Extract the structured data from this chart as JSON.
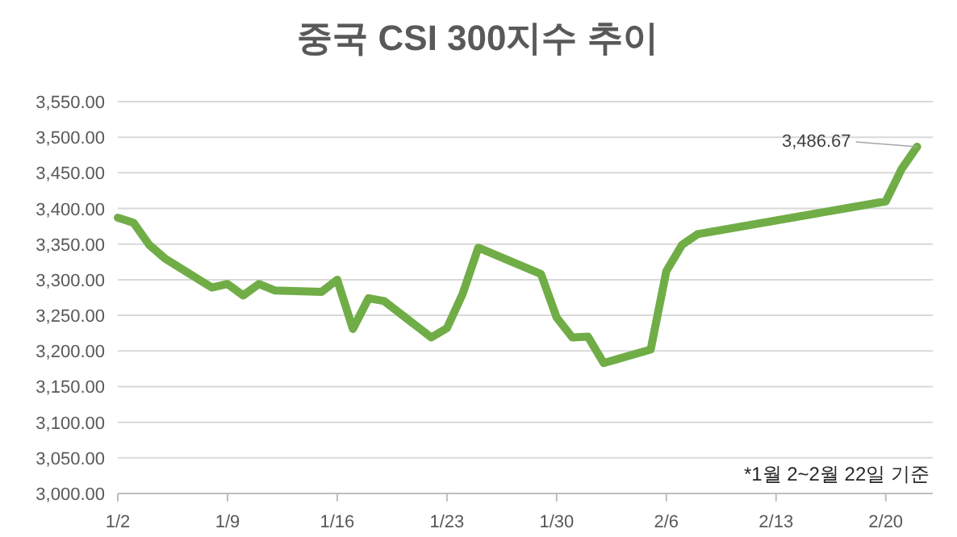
{
  "chart_data": {
    "type": "line",
    "title": "중국 CSI 300지수 추이",
    "x": [
      "--01-02",
      "--01-03",
      "--01-04",
      "--01-05",
      "--01-08",
      "--01-09",
      "--01-10",
      "--01-11",
      "--01-12",
      "--01-15",
      "--01-16",
      "--01-17",
      "--01-18",
      "--01-19",
      "--01-22",
      "--01-23",
      "--01-24",
      "--01-25",
      "--01-29",
      "--01-30",
      "--01-31",
      "--02-01",
      "--02-02",
      "--02-05",
      "--02-06",
      "--02-07",
      "--02-08",
      "--02-20",
      "--02-21",
      "--02-22"
    ],
    "series": [
      {
        "color": "#70ad47",
        "values": [
          3387,
          3380,
          3349,
          3330,
          3289,
          3294,
          3278,
          3294,
          3285,
          3283,
          3300,
          3231,
          3274,
          3270,
          3219,
          3232,
          3280,
          3345,
          3308,
          3247,
          3219,
          3220,
          3183,
          3202,
          3312,
          3349,
          3364,
          3410,
          3455,
          3486.67
        ]
      }
    ],
    "xlim": [
      "--01-02",
      "--02-23"
    ],
    "xticks": [
      {
        "value": "--01-02",
        "label": "1/2"
      },
      {
        "value": "--01-09",
        "label": "1/9"
      },
      {
        "value": "--01-16",
        "label": "1/16"
      },
      {
        "value": "--01-23",
        "label": "1/23"
      },
      {
        "value": "--01-30",
        "label": "1/30"
      },
      {
        "value": "--02-06",
        "label": "2/6"
      },
      {
        "value": "--02-13",
        "label": "2/13"
      },
      {
        "value": "--02-20",
        "label": "2/20"
      }
    ],
    "ylim": [
      3000,
      3550
    ],
    "yticks": [
      {
        "value": 3000,
        "label": "3,000.00"
      },
      {
        "value": 3050,
        "label": "3,050.00"
      },
      {
        "value": 3100,
        "label": "3,100.00"
      },
      {
        "value": 3150,
        "label": "3,150.00"
      },
      {
        "value": 3200,
        "label": "3,200.00"
      },
      {
        "value": 3250,
        "label": "3,250.00"
      },
      {
        "value": 3300,
        "label": "3,300.00"
      },
      {
        "value": 3350,
        "label": "3,350.00"
      },
      {
        "value": 3400,
        "label": "3,400.00"
      },
      {
        "value": 3450,
        "label": "3,450.00"
      },
      {
        "value": 3500,
        "label": "3,500.00"
      },
      {
        "value": 3550,
        "label": "3,550.00"
      }
    ],
    "grid": "y",
    "marker": "none",
    "line_style": "solid",
    "annotations": [
      {
        "text": "3,486.67",
        "x": "--02-22",
        "y": 3486.67
      },
      "*1월 2~2월 22일 기준"
    ]
  }
}
